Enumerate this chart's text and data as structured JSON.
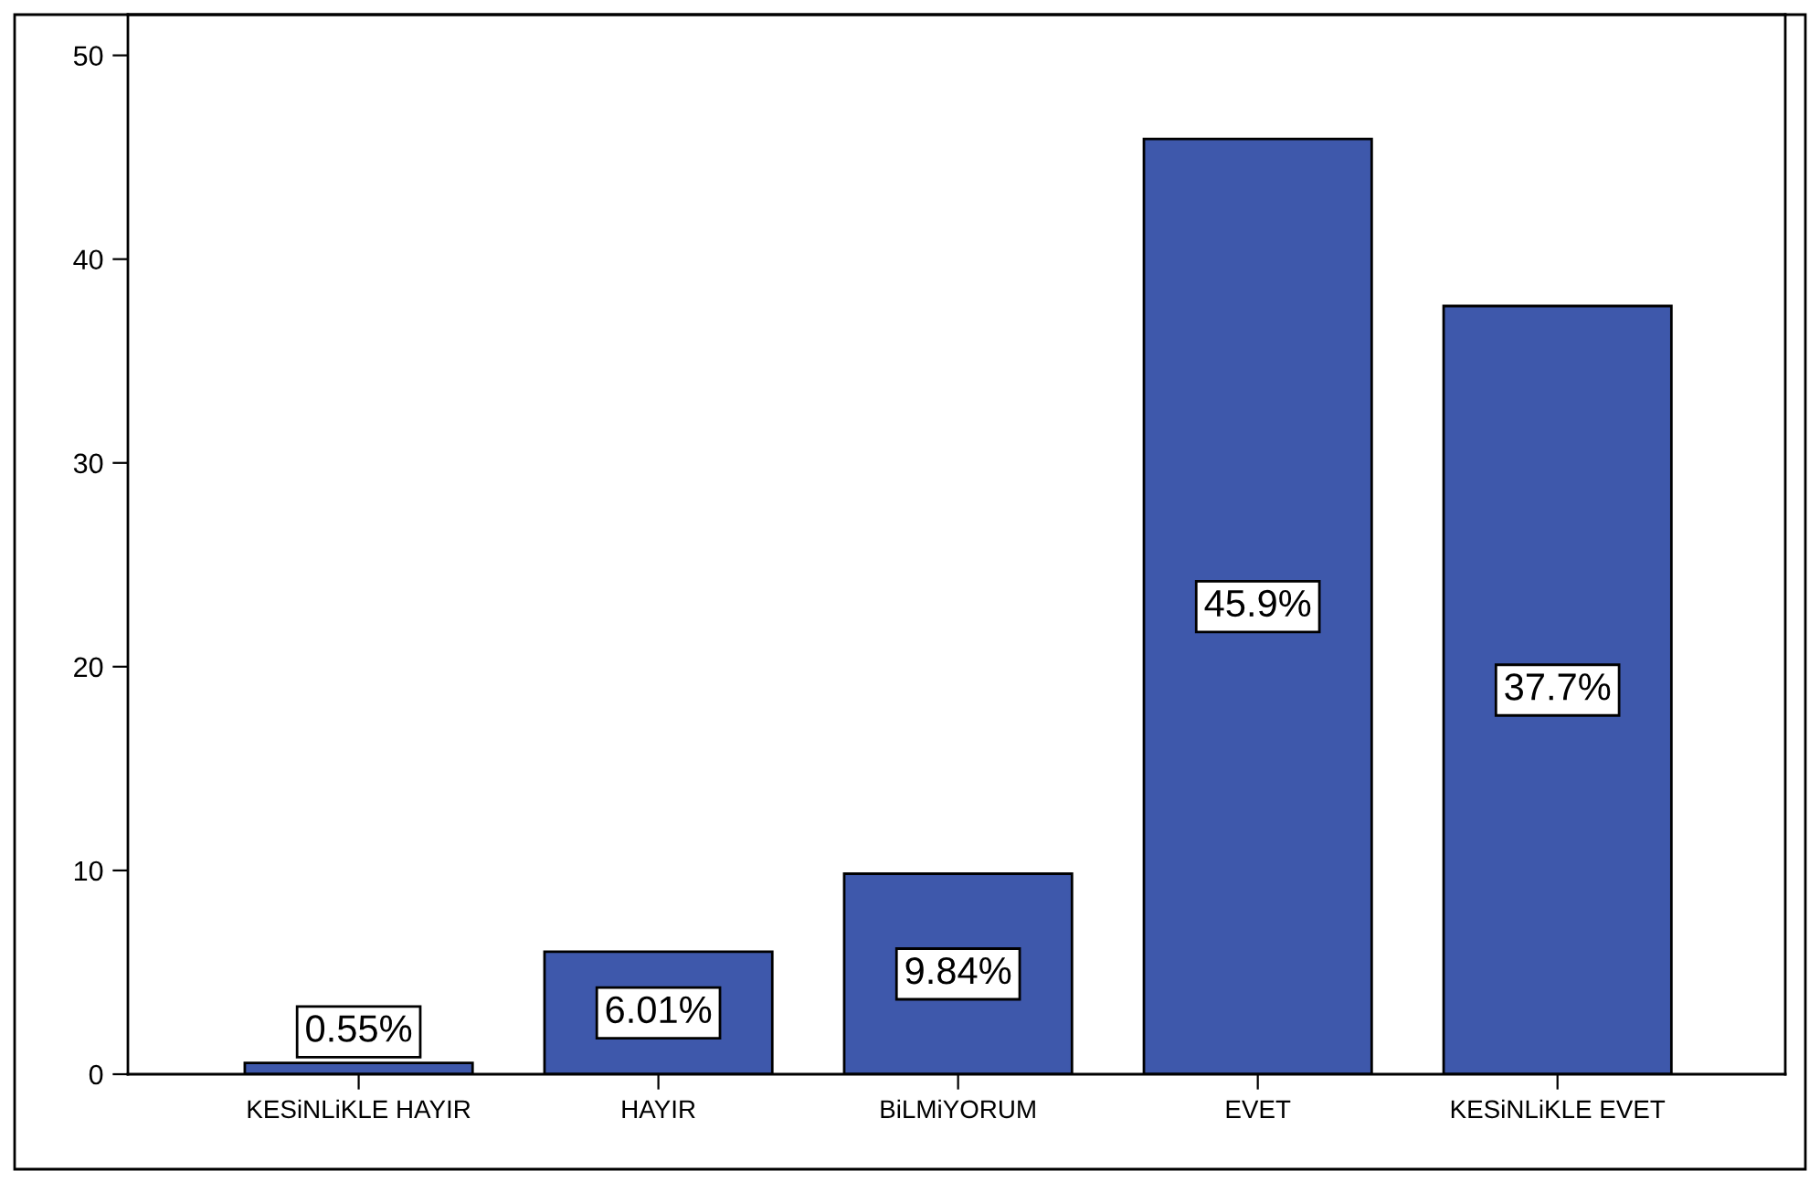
{
  "chart_data": {
    "type": "bar",
    "categories": [
      "KESiNLiKLE HAYIR",
      "HAYIR",
      "BiLMiYORUM",
      "EVET",
      "KESiNLiKLE EVET"
    ],
    "values": [
      0.55,
      6.01,
      9.84,
      45.9,
      37.7
    ],
    "value_labels": [
      "0.55%",
      "6.01%",
      "9.84%",
      "45.9%",
      "37.7%"
    ],
    "color": "#3e58ab",
    "ylim": [
      0,
      52
    ],
    "yticks": [
      0,
      10,
      20,
      30,
      40,
      50
    ],
    "grid": false,
    "legend": false
  }
}
